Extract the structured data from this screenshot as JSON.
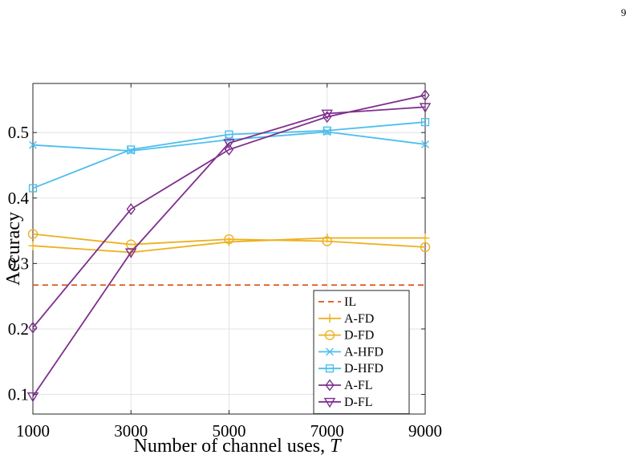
{
  "page": {
    "number": "9"
  },
  "chart_data": {
    "type": "line",
    "title": "",
    "xlabel": "Number of channel uses, ",
    "xlabel_var": "T",
    "ylabel": "Accuracy",
    "x": [
      1000,
      3000,
      5000,
      7000,
      9000
    ],
    "xticks": [
      "1000",
      "3000",
      "5000",
      "7000",
      "9000"
    ],
    "yticks": [
      0.1,
      0.2,
      0.3,
      0.4,
      0.5
    ],
    "ytick_labels": [
      "0.1",
      "0.2",
      "0.3",
      "0.4",
      "0.5"
    ],
    "xlim": [
      1000,
      9000
    ],
    "ylim": [
      0.07,
      0.575
    ],
    "grid": true,
    "legend_position": "bottom-right",
    "series": [
      {
        "name": "IL",
        "values": [
          0.267,
          0.267,
          0.267,
          0.267,
          0.267
        ],
        "color": "#D95319",
        "marker": "none",
        "style": "dashed"
      },
      {
        "name": "A-FD",
        "values": [
          0.327,
          0.317,
          0.333,
          0.339,
          0.339
        ],
        "color": "#EDB120",
        "marker": "plus",
        "style": "solid"
      },
      {
        "name": "D-FD",
        "values": [
          0.345,
          0.329,
          0.337,
          0.334,
          0.325
        ],
        "color": "#EDB120",
        "marker": "circle",
        "style": "solid"
      },
      {
        "name": "A-HFD",
        "values": [
          0.481,
          0.472,
          0.489,
          0.501,
          0.482
        ],
        "color": "#4DBEEE",
        "marker": "x",
        "style": "solid"
      },
      {
        "name": "D-HFD",
        "values": [
          0.415,
          0.474,
          0.497,
          0.503,
          0.516
        ],
        "color": "#4DBEEE",
        "marker": "square",
        "style": "solid"
      },
      {
        "name": "A-FL",
        "values": [
          0.202,
          0.383,
          0.474,
          0.524,
          0.557
        ],
        "color": "#7E2F8E",
        "marker": "diamond",
        "style": "solid"
      },
      {
        "name": "D-FL",
        "values": [
          0.097,
          0.317,
          0.484,
          0.529,
          0.539
        ],
        "color": "#7E2F8E",
        "marker": "triangle-down",
        "style": "solid"
      }
    ]
  }
}
